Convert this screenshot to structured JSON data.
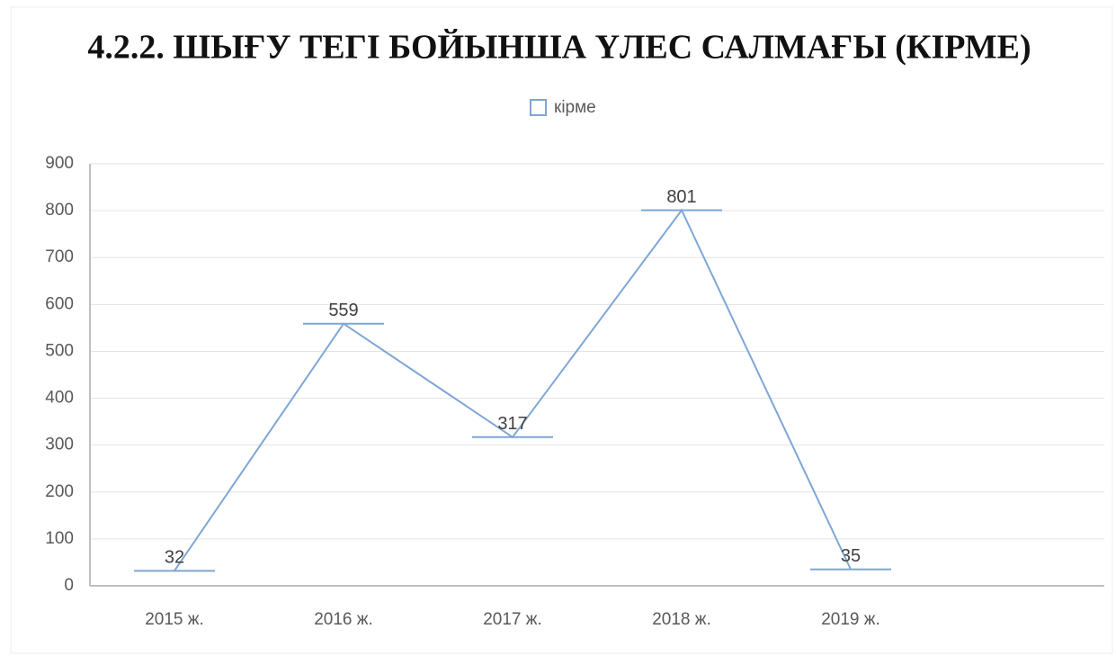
{
  "chart_data": {
    "type": "line",
    "title": "4.2.2. ШЫҒУ ТЕГІ БОЙЫНША ҮЛЕС САЛМАҒЫ (КІРМЕ)",
    "categories": [
      "2015 ж.",
      "2016 ж.",
      "2017 ж.",
      "2018 ж.",
      "2019 ж."
    ],
    "series": [
      {
        "name": "кірме",
        "color": "#7ea6d5",
        "values": [
          32,
          559,
          317,
          801,
          35
        ]
      }
    ],
    "ylim": [
      0,
      900
    ],
    "yticks": [
      0,
      100,
      200,
      300,
      400,
      500,
      600,
      700,
      800,
      900
    ],
    "grid": true,
    "legend": "top"
  }
}
